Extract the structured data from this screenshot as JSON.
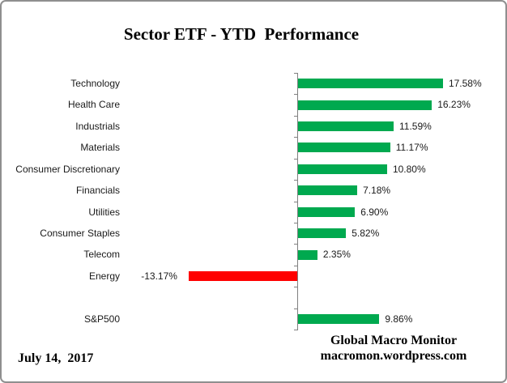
{
  "window": {
    "background": "#ffffff",
    "border_color": "#8f8f8f"
  },
  "chart_data": {
    "type": "bar",
    "orientation": "horizontal",
    "title": "Sector ETF - YTD  Performance",
    "xlabel": "",
    "ylabel": "",
    "grid": false,
    "legend": false,
    "axis_color": "#808080",
    "positive_color": "#00A94F",
    "negative_color": "#FF0000",
    "categories": [
      "Technology",
      "Health Care",
      "Industrials",
      "Materials",
      "Consumer Discretionary",
      "Financials",
      "Utilities",
      "Consumer Staples",
      "Telecom",
      "Energy",
      "S&P500"
    ],
    "values": [
      17.58,
      16.23,
      11.59,
      11.17,
      10.8,
      7.18,
      6.9,
      5.82,
      2.35,
      -13.17,
      9.86
    ],
    "series": [
      {
        "label": "Technology",
        "value": 17.58,
        "display": "17.58%"
      },
      {
        "label": "Health Care",
        "value": 16.23,
        "display": "16.23%"
      },
      {
        "label": "Industrials",
        "value": 11.59,
        "display": "11.59%"
      },
      {
        "label": "Materials",
        "value": 11.17,
        "display": "11.17%"
      },
      {
        "label": "Consumer Discretionary",
        "value": 10.8,
        "display": "10.80%"
      },
      {
        "label": "Financials",
        "value": 7.18,
        "display": "7.18%"
      },
      {
        "label": "Utilities",
        "value": 6.9,
        "display": "6.90%"
      },
      {
        "label": "Consumer Staples",
        "value": 5.82,
        "display": "5.82%"
      },
      {
        "label": "Telecom",
        "value": 2.35,
        "display": "2.35%"
      },
      {
        "label": "Energy",
        "value": -13.17,
        "display": "-13.17%"
      },
      {
        "label": "S&P500",
        "value": 9.86,
        "display": "9.86%",
        "gap_before": true
      }
    ]
  },
  "footer": {
    "date": "July 14,  2017",
    "credit_line1": "Global Macro Monitor",
    "credit_line2": "macromon.wordpress.com"
  }
}
